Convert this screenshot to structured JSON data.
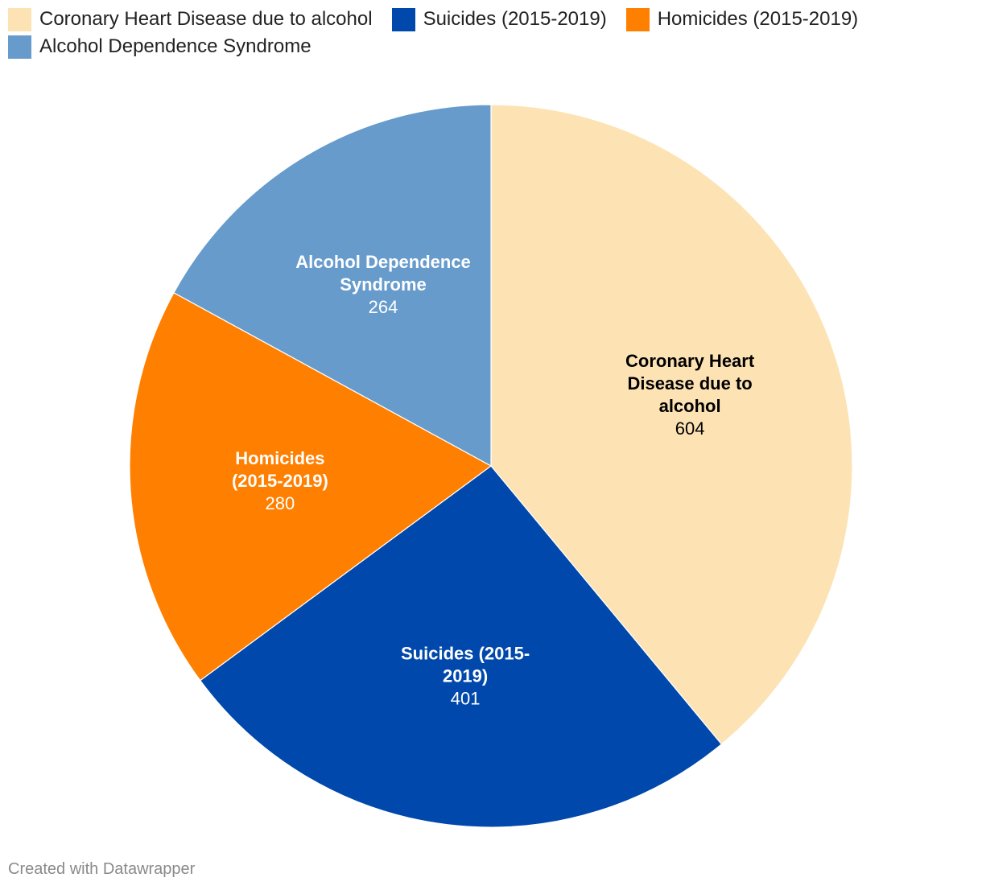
{
  "chart_data": {
    "type": "pie",
    "title": "",
    "categories": [
      "Coronary Heart Disease due to alcohol",
      "Suicides (2015-2019)",
      "Homicides (2015-2019)",
      "Alcohol Dependence Syndrome"
    ],
    "values": [
      604,
      401,
      280,
      264
    ],
    "slice_labels": [
      [
        "Coronary Heart",
        "Disease due to",
        "alcohol"
      ],
      [
        "Suicides (2015-",
        "2019)"
      ],
      [
        "Homicides",
        "(2015-2019)"
      ],
      [
        "Alcohol Dependence",
        "Syndrome"
      ]
    ],
    "colors": [
      "#fde3b4",
      "#0048ab",
      "#ff7f00",
      "#669bcc"
    ],
    "label_colors": [
      "#000000",
      "#ffffff",
      "#ffffff",
      "#ffffff"
    ],
    "start_angle": "12 o'clock",
    "direction": "clockwise",
    "legend_position": "top-left"
  },
  "footer": {
    "credit": "Created with Datawrapper"
  }
}
